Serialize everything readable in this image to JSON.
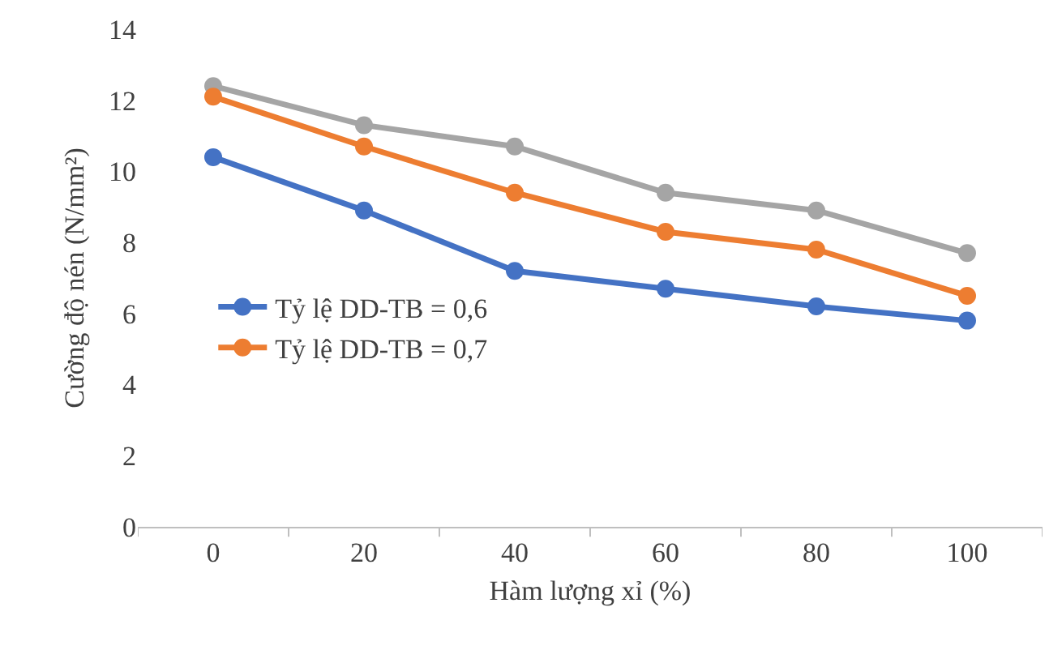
{
  "chart_data": {
    "type": "line",
    "xlabel": "Hàm lượng xỉ (%)",
    "ylabel": "Cường độ nén (N/mm²)",
    "categories": [
      "0",
      "20",
      "40",
      "60",
      "80",
      "100"
    ],
    "series": [
      {
        "name": "Tỷ lệ DD-TB = 0,6",
        "color": "#4472c4",
        "values": [
          10.4,
          8.9,
          7.2,
          6.7,
          6.2,
          5.8
        ]
      },
      {
        "name": "Tỷ lệ DD-TB = 0,7",
        "color": "#ed7d31",
        "values": [
          12.1,
          10.7,
          9.4,
          8.3,
          7.8,
          6.5
        ]
      },
      {
        "color": "#a5a5a5",
        "values": [
          12.4,
          11.3,
          10.7,
          9.4,
          8.9,
          7.7
        ]
      }
    ],
    "ylim": [
      0,
      14
    ],
    "yticks": [
      0,
      2,
      4,
      6,
      8,
      10,
      12,
      14
    ],
    "grid": false,
    "legend": "left",
    "marker": "circle",
    "line_style": "solid"
  }
}
